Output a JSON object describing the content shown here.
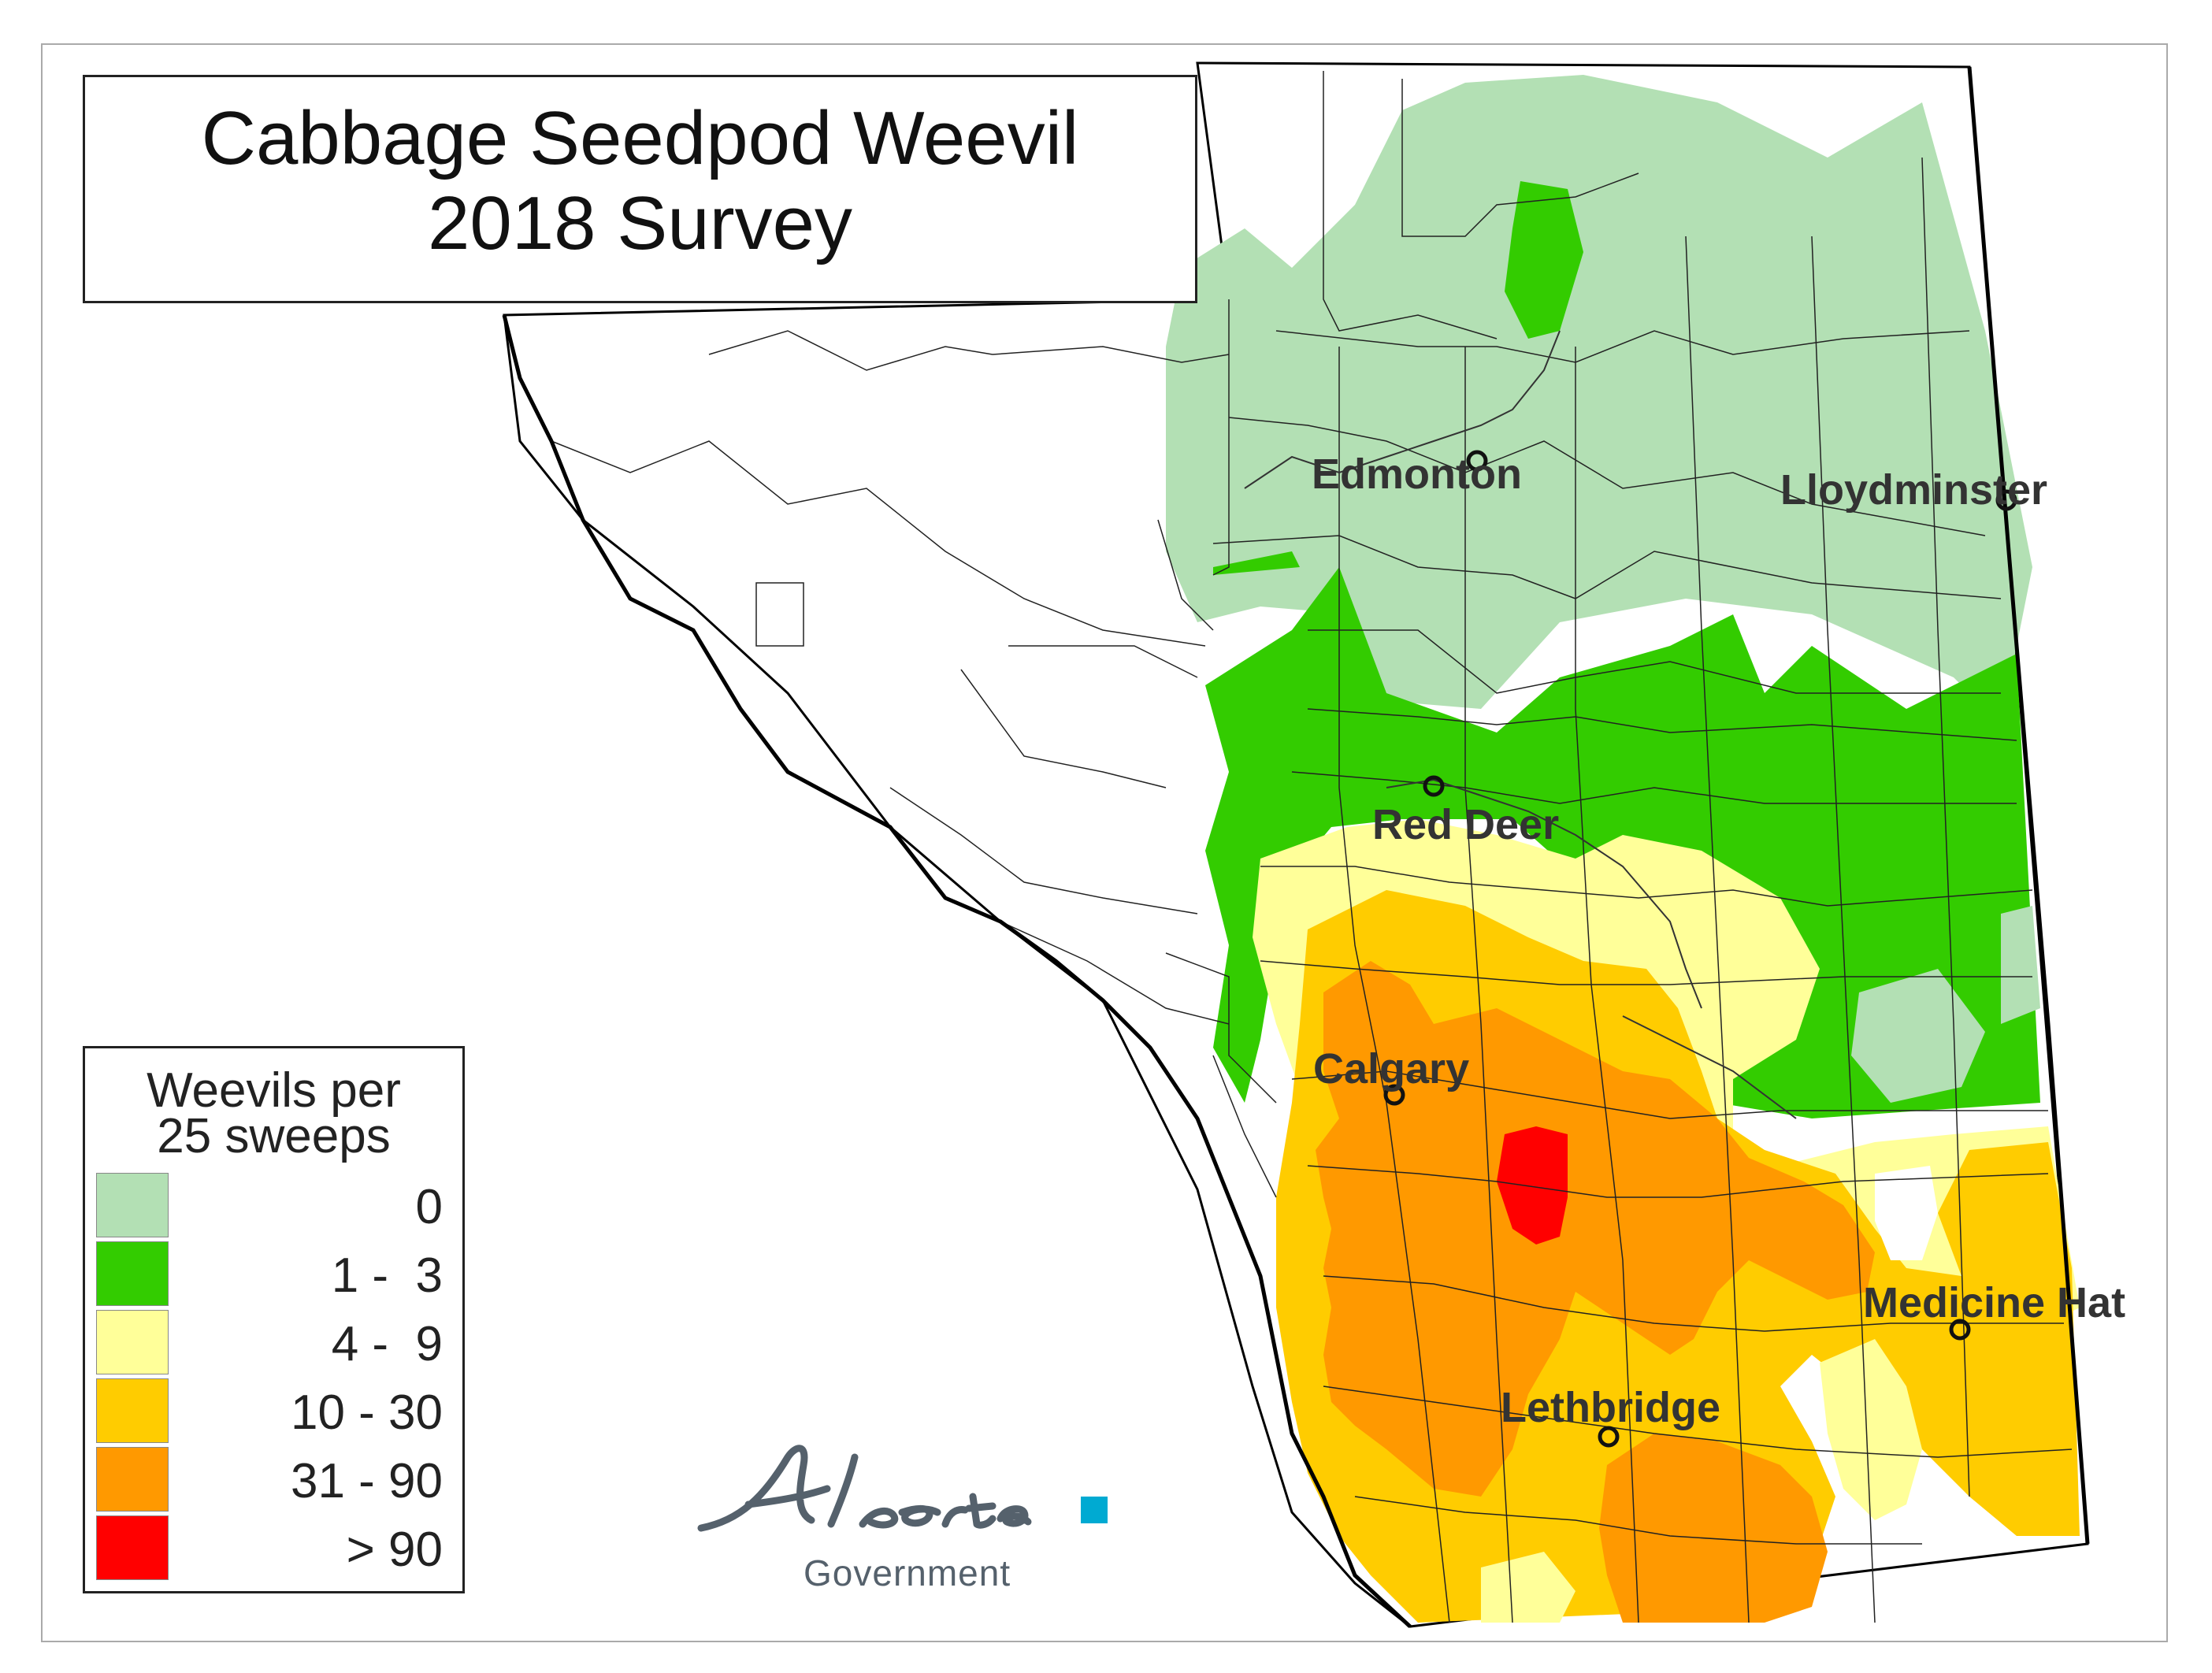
{
  "title": {
    "line1": "Cabbage Seedpod Weevil",
    "line2": "2018 Survey"
  },
  "legend": {
    "title_line1": "Weevils per",
    "title_line2": "25 sweeps",
    "classes": [
      {
        "label": "0",
        "color": "#b3e0b4"
      },
      {
        "label": "1 -  3",
        "color": "#33cc00"
      },
      {
        "label": "4 -  9",
        "color": "#ffff99"
      },
      {
        "label": "10 - 30",
        "color": "#ffcc00"
      },
      {
        "label": "31 - 90",
        "color": "#ff9900"
      },
      {
        "label": "> 90",
        "color": "#ff0000"
      }
    ]
  },
  "cities": [
    {
      "name": "Edmonton"
    },
    {
      "name": "Lloydminster"
    },
    {
      "name": "Red Deer"
    },
    {
      "name": "Calgary"
    },
    {
      "name": "Medicine Hat"
    },
    {
      "name": "Lethbridge"
    }
  ],
  "logo": {
    "wordmark": "Alberta",
    "subtitle": "Government",
    "accent_color": "#00aad2"
  }
}
